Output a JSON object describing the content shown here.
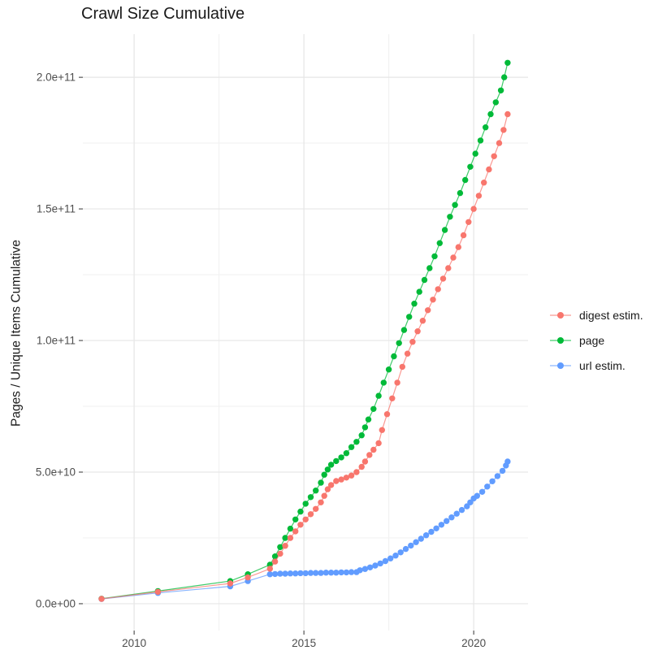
{
  "chart_data": {
    "type": "line",
    "title": "Crawl Size Cumulative",
    "xlabel": "",
    "ylabel": "Pages / Unique Items Cumulative",
    "value_unit": "1e9 (points stored as [year, billions]; 100 = 1.0e+11)",
    "grid": true,
    "legend_position": "right",
    "xlim": [
      2008.49,
      2021.6
    ],
    "ylim": [
      -10.2,
      216.4
    ],
    "x_ticks": [
      {
        "v": 2010,
        "label": "2010"
      },
      {
        "v": 2015,
        "label": "2015"
      },
      {
        "v": 2020,
        "label": "2020"
      }
    ],
    "x_minor_ticks": [
      2012.5,
      2017.5
    ],
    "y_ticks": [
      {
        "v": 0,
        "label": "0.0e+00"
      },
      {
        "v": 50,
        "label": "5.0e+10"
      },
      {
        "v": 100,
        "label": "1.0e+11"
      },
      {
        "v": 150,
        "label": "1.5e+11"
      },
      {
        "v": 200,
        "label": "2.0e+11"
      }
    ],
    "y_minor_ticks": [
      25,
      75,
      125,
      175
    ],
    "grid_major_color": "#e6e6e6",
    "grid_minor_color": "#f2f2f2",
    "axis_text_color": "#4d4d4d",
    "tick_mark_color": "#333333",
    "series": [
      {
        "name": "page",
        "color": "#00BA38",
        "points": [
          [
            2009.04,
            1.9
          ],
          [
            2010.7,
            4.8
          ],
          [
            2012.83,
            8.6
          ],
          [
            2013.35,
            11.2
          ],
          [
            2014.0,
            14.8
          ],
          [
            2014.15,
            18
          ],
          [
            2014.3,
            21.5
          ],
          [
            2014.45,
            25
          ],
          [
            2014.6,
            28.5
          ],
          [
            2014.75,
            32
          ],
          [
            2014.9,
            35
          ],
          [
            2015.05,
            38
          ],
          [
            2015.2,
            40.5
          ],
          [
            2015.35,
            43
          ],
          [
            2015.5,
            46
          ],
          [
            2015.6,
            49
          ],
          [
            2015.7,
            51
          ],
          [
            2015.8,
            52.8
          ],
          [
            2015.95,
            54.2
          ],
          [
            2016.1,
            55.6
          ],
          [
            2016.25,
            57.2
          ],
          [
            2016.4,
            59.5
          ],
          [
            2016.55,
            61.5
          ],
          [
            2016.7,
            64
          ],
          [
            2016.8,
            67
          ],
          [
            2016.9,
            70
          ],
          [
            2017.05,
            74
          ],
          [
            2017.2,
            79
          ],
          [
            2017.35,
            84
          ],
          [
            2017.5,
            89
          ],
          [
            2017.65,
            94
          ],
          [
            2017.8,
            99
          ],
          [
            2017.95,
            104
          ],
          [
            2018.1,
            109
          ],
          [
            2018.25,
            114
          ],
          [
            2018.4,
            118.5
          ],
          [
            2018.55,
            123
          ],
          [
            2018.7,
            127.5
          ],
          [
            2018.85,
            132
          ],
          [
            2019.0,
            137
          ],
          [
            2019.15,
            142
          ],
          [
            2019.3,
            147
          ],
          [
            2019.45,
            151.5
          ],
          [
            2019.6,
            156
          ],
          [
            2019.75,
            161
          ],
          [
            2019.9,
            166
          ],
          [
            2020.05,
            171
          ],
          [
            2020.2,
            176
          ],
          [
            2020.35,
            181
          ],
          [
            2020.5,
            186
          ],
          [
            2020.65,
            190.5
          ],
          [
            2020.8,
            195
          ],
          [
            2020.9,
            200
          ],
          [
            2021.0,
            205.5
          ]
        ]
      },
      {
        "name": "url estim.",
        "color": "#619CFF",
        "points": [
          [
            2009.04,
            1.8
          ],
          [
            2010.7,
            4.1
          ],
          [
            2012.83,
            6.6
          ],
          [
            2013.35,
            8.6
          ],
          [
            2014.0,
            11.2
          ],
          [
            2014.15,
            11.3
          ],
          [
            2014.3,
            11.4
          ],
          [
            2014.45,
            11.4
          ],
          [
            2014.6,
            11.5
          ],
          [
            2014.75,
            11.5
          ],
          [
            2014.9,
            11.6
          ],
          [
            2015.05,
            11.6
          ],
          [
            2015.2,
            11.7
          ],
          [
            2015.35,
            11.7
          ],
          [
            2015.5,
            11.7
          ],
          [
            2015.65,
            11.8
          ],
          [
            2015.8,
            11.8
          ],
          [
            2015.95,
            11.8
          ],
          [
            2016.1,
            11.9
          ],
          [
            2016.25,
            11.9
          ],
          [
            2016.4,
            12.0
          ],
          [
            2016.55,
            12.0
          ],
          [
            2016.65,
            12.7
          ],
          [
            2016.8,
            13.2
          ],
          [
            2016.95,
            13.8
          ],
          [
            2017.1,
            14.5
          ],
          [
            2017.25,
            15.3
          ],
          [
            2017.4,
            16.2
          ],
          [
            2017.55,
            17.2
          ],
          [
            2017.7,
            18.3
          ],
          [
            2017.85,
            19.5
          ],
          [
            2018.0,
            20.8
          ],
          [
            2018.15,
            22.1
          ],
          [
            2018.3,
            23.4
          ],
          [
            2018.45,
            24.7
          ],
          [
            2018.6,
            26
          ],
          [
            2018.75,
            27.3
          ],
          [
            2018.9,
            28.6
          ],
          [
            2019.05,
            30
          ],
          [
            2019.2,
            31.4
          ],
          [
            2019.35,
            32.8
          ],
          [
            2019.5,
            34.2
          ],
          [
            2019.65,
            35.6
          ],
          [
            2019.8,
            37
          ],
          [
            2019.9,
            38.5
          ],
          [
            2020.0,
            40
          ],
          [
            2020.1,
            41
          ],
          [
            2020.25,
            42.5
          ],
          [
            2020.4,
            44.5
          ],
          [
            2020.55,
            46.5
          ],
          [
            2020.7,
            48.5
          ],
          [
            2020.85,
            50.5
          ],
          [
            2020.95,
            52.5
          ],
          [
            2021.0,
            54
          ]
        ]
      },
      {
        "name": "digest estim.",
        "color": "#F8766D",
        "points": [
          [
            2009.04,
            1.85
          ],
          [
            2010.7,
            4.5
          ],
          [
            2012.83,
            7.7
          ],
          [
            2013.35,
            10.0
          ],
          [
            2014.0,
            13.3
          ],
          [
            2014.15,
            16
          ],
          [
            2014.3,
            19
          ],
          [
            2014.45,
            22
          ],
          [
            2014.6,
            25
          ],
          [
            2014.75,
            27.5
          ],
          [
            2014.9,
            30
          ],
          [
            2015.05,
            32
          ],
          [
            2015.2,
            34
          ],
          [
            2015.35,
            36
          ],
          [
            2015.5,
            38.5
          ],
          [
            2015.6,
            41
          ],
          [
            2015.7,
            43.5
          ],
          [
            2015.8,
            45.1
          ],
          [
            2015.95,
            46.6
          ],
          [
            2016.1,
            47.2
          ],
          [
            2016.25,
            47.9
          ],
          [
            2016.4,
            48.7
          ],
          [
            2016.55,
            50
          ],
          [
            2016.7,
            52
          ],
          [
            2016.8,
            54
          ],
          [
            2016.93,
            56.5
          ],
          [
            2017.05,
            58.5
          ],
          [
            2017.2,
            61
          ],
          [
            2017.3,
            66
          ],
          [
            2017.45,
            72
          ],
          [
            2017.6,
            78
          ],
          [
            2017.75,
            84
          ],
          [
            2017.9,
            90
          ],
          [
            2018.05,
            95
          ],
          [
            2018.2,
            99.5
          ],
          [
            2018.35,
            103.5
          ],
          [
            2018.5,
            107.5
          ],
          [
            2018.65,
            111.5
          ],
          [
            2018.8,
            115.5
          ],
          [
            2018.95,
            119.5
          ],
          [
            2019.1,
            123.5
          ],
          [
            2019.25,
            127.5
          ],
          [
            2019.4,
            131.5
          ],
          [
            2019.55,
            135.5
          ],
          [
            2019.7,
            140
          ],
          [
            2019.85,
            145
          ],
          [
            2020.0,
            150
          ],
          [
            2020.15,
            155
          ],
          [
            2020.3,
            160
          ],
          [
            2020.45,
            165
          ],
          [
            2020.6,
            170
          ],
          [
            2020.75,
            175
          ],
          [
            2020.88,
            180
          ],
          [
            2021.0,
            186
          ]
        ]
      }
    ],
    "legend_order": [
      "digest estim.",
      "page",
      "url estim."
    ]
  }
}
